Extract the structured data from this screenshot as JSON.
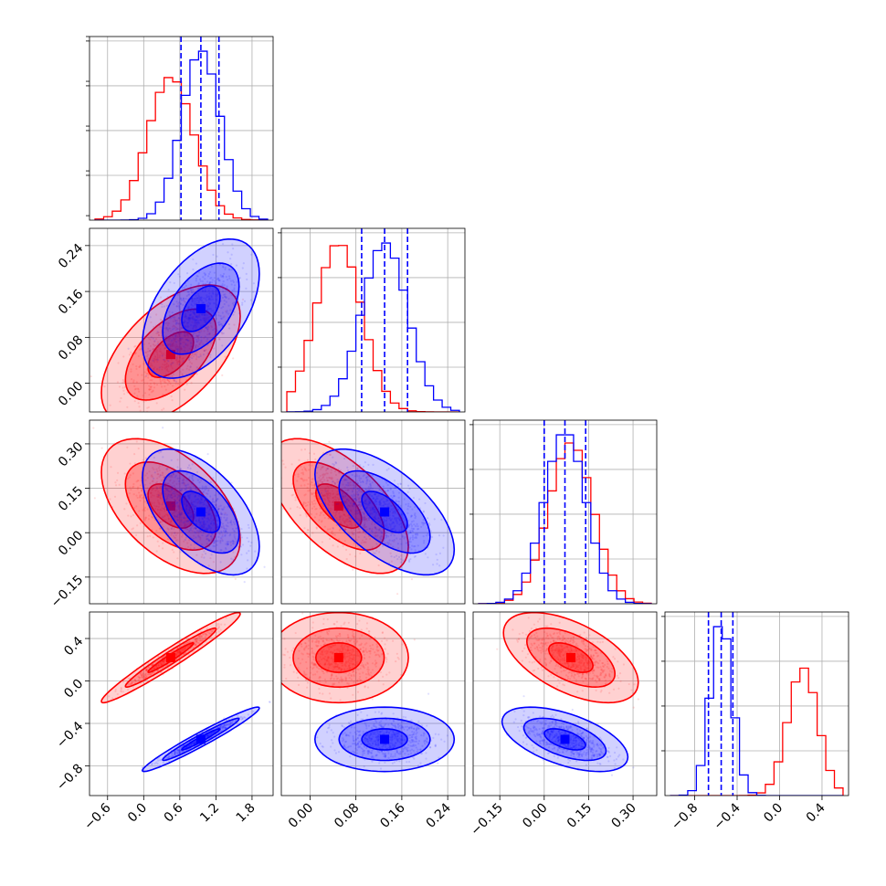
{
  "chart_data": {
    "type": "corner",
    "grid": true,
    "colors": {
      "red": "#ff0000",
      "blue": "#0000ff"
    },
    "series": [
      {
        "color": "#ff0000",
        "means": [
          0.45,
          0.05,
          0.09,
          0.22
        ],
        "sds": [
          0.38,
          0.04,
          0.075,
          0.14
        ],
        "corr": [
          [
            1,
            0.55,
            -0.5,
            0.97
          ],
          [
            0.55,
            1,
            -0.6,
            0.0
          ],
          [
            -0.5,
            -0.6,
            1,
            -0.55
          ],
          [
            0.97,
            0.0,
            -0.55,
            1
          ]
        ]
      },
      {
        "color": "#0000ff",
        "means": [
          0.95,
          0.13,
          0.07,
          -0.55
        ],
        "sds": [
          0.32,
          0.04,
          0.07,
          0.1
        ],
        "corr": [
          [
            1,
            0.5,
            -0.55,
            0.97
          ],
          [
            0.5,
            1,
            -0.6,
            0.0
          ],
          [
            -0.55,
            -0.6,
            1,
            -0.55
          ],
          [
            0.97,
            0.0,
            -0.55,
            1
          ]
        ]
      }
    ],
    "quantile_lines": [
      [
        0.62,
        0.95,
        1.25
      ],
      [
        0.09,
        0.13,
        0.17
      ],
      [
        0.0,
        0.07,
        0.14
      ],
      [
        -0.67,
        -0.55,
        -0.44
      ]
    ],
    "ranges": [
      [
        -0.9,
        2.15
      ],
      [
        -0.05,
        0.27
      ],
      [
        -0.24,
        0.38
      ],
      [
        -1.08,
        0.65
      ]
    ],
    "ticks": [
      [
        "-0.6",
        "0.0",
        "0.6",
        "1.2",
        "1.8"
      ],
      [
        "0.00",
        "0.08",
        "0.16",
        "0.24"
      ],
      [
        "-0.15",
        "0.00",
        "0.15",
        "0.30"
      ],
      [
        "-0.8",
        "-0.4",
        "0.0",
        "0.4"
      ]
    ],
    "y_ticks": [
      null,
      [
        "0.00",
        "0.08",
        "0.16",
        "0.24"
      ],
      [
        "-0.15",
        "0.00",
        "0.15",
        "0.30"
      ],
      [
        "-0.8",
        "-0.4",
        "0.0",
        "0.4"
      ]
    ]
  }
}
